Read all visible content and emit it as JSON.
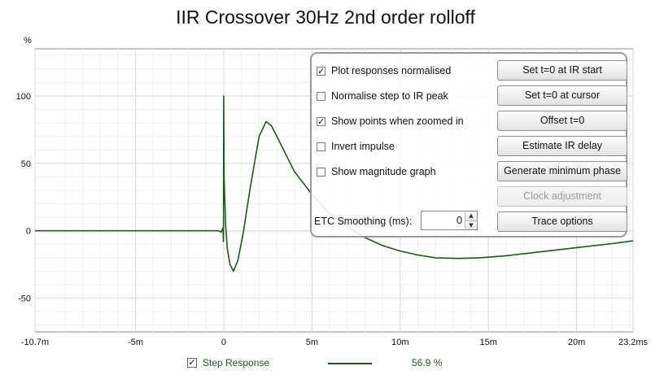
{
  "title": "IIR Crossover 30Hz 2nd order rolloff",
  "colors": {
    "trace": "#1a5a1a",
    "grid": "#d6d6d6",
    "axis": "#8a8a8a",
    "panel_border": "#9a9a9a"
  },
  "options": {
    "checkboxes": [
      {
        "label": "Plot responses normalised",
        "checked": true
      },
      {
        "label": "Normalise step to IR peak",
        "checked": false
      },
      {
        "label": "Show points when zoomed in",
        "checked": true
      },
      {
        "label": "Invert impulse",
        "checked": false
      },
      {
        "label": "Show magnitude graph",
        "checked": false
      }
    ],
    "buttons": [
      {
        "label": "Set t=0 at IR start",
        "enabled": true
      },
      {
        "label": "Set t=0 at cursor",
        "enabled": true
      },
      {
        "label": "Offset t=0",
        "enabled": true
      },
      {
        "label": "Estimate IR delay",
        "enabled": true
      },
      {
        "label": "Generate minimum phase",
        "enabled": true
      },
      {
        "label": "Clock adjustment",
        "enabled": false
      },
      {
        "label": "Trace options",
        "enabled": true
      }
    ],
    "etc_smoothing": {
      "label": "ETC Smoothing (ms):",
      "value": "0"
    }
  },
  "legend": {
    "label": "Step Response",
    "checked": true,
    "value": "56.9 %"
  },
  "chart_data": {
    "type": "line",
    "title": "IIR Crossover 30Hz 2nd order rolloff",
    "xlabel": "",
    "ylabel": "%",
    "xlim": [
      -10.7,
      23.2
    ],
    "ylim": [
      -75,
      135
    ],
    "grid": true,
    "x_ticks": [
      {
        "value": -10.7,
        "label": "-10.7m"
      },
      {
        "value": -5,
        "label": "-5m"
      },
      {
        "value": 0,
        "label": "0"
      },
      {
        "value": 5,
        "label": "5m"
      },
      {
        "value": 10,
        "label": "10m"
      },
      {
        "value": 15,
        "label": "15m"
      },
      {
        "value": 20,
        "label": "20m"
      },
      {
        "value": 23.2,
        "label": "23.2ms"
      }
    ],
    "y_ticks": [
      {
        "value": 100,
        "label": "100"
      },
      {
        "value": 50,
        "label": "50"
      },
      {
        "value": 0,
        "label": "0"
      },
      {
        "value": -50,
        "label": "-50"
      }
    ],
    "series": [
      {
        "name": "Step Response",
        "points": [
          [
            -10.7,
            0
          ],
          [
            -1.0,
            0
          ],
          [
            -0.3,
            0
          ],
          [
            -0.15,
            -1
          ],
          [
            -0.05,
            2
          ],
          [
            -0.02,
            -8
          ],
          [
            -0.005,
            100
          ],
          [
            0.02,
            40
          ],
          [
            0.1,
            5
          ],
          [
            0.2,
            -13
          ],
          [
            0.35,
            -25
          ],
          [
            0.55,
            -30
          ],
          [
            0.8,
            -22
          ],
          [
            1.1,
            -2
          ],
          [
            1.5,
            32
          ],
          [
            2.0,
            70
          ],
          [
            2.4,
            81
          ],
          [
            2.7,
            78
          ],
          [
            3.2,
            65
          ],
          [
            4.0,
            44
          ],
          [
            5.0,
            27
          ],
          [
            6.0,
            13
          ],
          [
            7.0,
            3
          ],
          [
            8.0,
            -5
          ],
          [
            9.0,
            -11
          ],
          [
            10.0,
            -15
          ],
          [
            11.0,
            -18
          ],
          [
            12.0,
            -20
          ],
          [
            13.3,
            -20.5
          ],
          [
            14.5,
            -20
          ],
          [
            16.0,
            -18.5
          ],
          [
            18.0,
            -15.5
          ],
          [
            20.0,
            -12.5
          ],
          [
            22.0,
            -9.5
          ],
          [
            23.2,
            -7.5
          ]
        ]
      }
    ]
  }
}
